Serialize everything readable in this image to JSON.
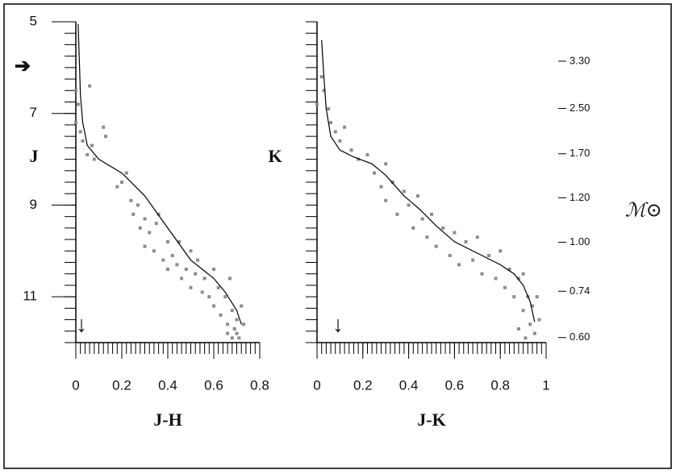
{
  "chart_data": [
    {
      "type": "scatter",
      "xlabel": "J-H",
      "ylabel": "J",
      "xlim": [
        0,
        0.8
      ],
      "xticks": [
        0,
        0.2,
        0.4,
        0.6,
        0.8
      ],
      "xminor_step": 0.02,
      "ylim": [
        5,
        12
      ],
      "y_inverted": true,
      "yticks": [
        5,
        7,
        9,
        11
      ],
      "yminor_step": 0.25,
      "series": [
        {
          "type": "scatter",
          "color": "#8c8c8c",
          "x": [
            0.0,
            0.01,
            0.0,
            0.02,
            0.03,
            0.05,
            0.07,
            0.08,
            0.06,
            0.12,
            0.13,
            0.18,
            0.2,
            0.22,
            0.24,
            0.25,
            0.27,
            0.28,
            0.3,
            0.3,
            0.32,
            0.34,
            0.35,
            0.36,
            0.38,
            0.4,
            0.4,
            0.42,
            0.44,
            0.45,
            0.46,
            0.48,
            0.5,
            0.5,
            0.52,
            0.53,
            0.55,
            0.56,
            0.58,
            0.6,
            0.6,
            0.62,
            0.63,
            0.65,
            0.66,
            0.67,
            0.68,
            0.69,
            0.7,
            0.7,
            0.72,
            0.71,
            0.68,
            0.66,
            0.73
          ],
          "values": [
            6.5,
            6.8,
            7.2,
            7.4,
            7.6,
            7.9,
            7.7,
            8.0,
            6.4,
            7.3,
            7.5,
            8.6,
            8.5,
            8.3,
            8.9,
            9.2,
            9.0,
            9.5,
            9.3,
            9.9,
            9.6,
            10.0,
            9.4,
            9.2,
            10.2,
            9.8,
            10.4,
            10.1,
            10.3,
            9.8,
            10.6,
            10.4,
            10.0,
            10.8,
            10.5,
            10.2,
            10.9,
            10.6,
            11.0,
            10.4,
            11.2,
            10.8,
            11.4,
            11.0,
            11.6,
            10.6,
            11.3,
            11.7,
            11.5,
            11.8,
            11.2,
            11.9,
            11.9,
            11.8,
            11.6
          ]
        },
        {
          "type": "line",
          "color": "#000000",
          "x": [
            0.01,
            0.015,
            0.02,
            0.03,
            0.05,
            0.1,
            0.2,
            0.3,
            0.4,
            0.5,
            0.55,
            0.6,
            0.65,
            0.7,
            0.72
          ],
          "values": [
            5.05,
            5.8,
            6.6,
            7.2,
            7.7,
            8.0,
            8.3,
            8.8,
            9.5,
            10.2,
            10.4,
            10.6,
            10.9,
            11.3,
            11.6
          ]
        }
      ]
    },
    {
      "type": "scatter",
      "xlabel": "J-K",
      "ylabel": "K",
      "y2label": "ℳ⊙",
      "xlim": [
        0,
        1
      ],
      "xticks": [
        0,
        0.2,
        0.4,
        0.6,
        0.8,
        1
      ],
      "xminor_step": 0.02,
      "ylim": [
        5,
        12
      ],
      "y_inverted": true,
      "yticks": [],
      "yminor_step": 0.25,
      "y2ticks": [
        {
          "value": 3.3,
          "label": "3.30",
          "K": 5.86
        },
        {
          "value": 2.5,
          "label": "2.50",
          "K": 6.89
        },
        {
          "value": 1.7,
          "label": "1.70",
          "K": 7.88
        },
        {
          "value": 1.2,
          "label": "1.20",
          "K": 8.84
        },
        {
          "value": 1.0,
          "label": "1.00",
          "K": 9.81
        },
        {
          "value": 0.74,
          "label": "0.74",
          "K": 10.88
        },
        {
          "value": 0.6,
          "label": "0.60",
          "K": 11.89
        }
      ],
      "series": [
        {
          "type": "scatter",
          "color": "#8c8c8c",
          "x": [
            0.0,
            0.02,
            0.03,
            0.05,
            0.06,
            0.08,
            0.1,
            0.12,
            0.15,
            0.18,
            0.22,
            0.25,
            0.28,
            0.3,
            0.3,
            0.33,
            0.35,
            0.38,
            0.4,
            0.42,
            0.44,
            0.46,
            0.48,
            0.5,
            0.52,
            0.55,
            0.58,
            0.6,
            0.62,
            0.65,
            0.68,
            0.7,
            0.72,
            0.75,
            0.78,
            0.8,
            0.82,
            0.84,
            0.86,
            0.88,
            0.9,
            0.9,
            0.92,
            0.93,
            0.94,
            0.95,
            0.91,
            0.88,
            0.96,
            0.97
          ],
          "values": [
            6.8,
            6.2,
            6.5,
            6.9,
            7.2,
            7.4,
            7.6,
            7.3,
            7.8,
            8.0,
            7.9,
            8.3,
            8.6,
            8.1,
            8.9,
            8.5,
            9.2,
            8.7,
            9.0,
            9.5,
            8.8,
            9.3,
            9.7,
            9.2,
            9.9,
            9.5,
            10.1,
            9.6,
            10.3,
            9.8,
            10.2,
            9.7,
            10.5,
            10.1,
            10.6,
            10.0,
            10.8,
            10.4,
            11.0,
            10.6,
            11.3,
            10.5,
            11.0,
            11.6,
            11.2,
            11.8,
            11.9,
            11.7,
            11.0,
            11.5
          ]
        },
        {
          "type": "line",
          "color": "#000000",
          "x": [
            0.02,
            0.03,
            0.04,
            0.06,
            0.1,
            0.16,
            0.24,
            0.3,
            0.38,
            0.45,
            0.52,
            0.6,
            0.7,
            0.8,
            0.86,
            0.9,
            0.93,
            0.95
          ],
          "values": [
            5.4,
            6.2,
            6.9,
            7.5,
            7.8,
            7.95,
            8.1,
            8.35,
            8.8,
            9.1,
            9.45,
            9.8,
            10.05,
            10.3,
            10.5,
            10.75,
            11.1,
            11.55
          ]
        }
      ]
    }
  ]
}
